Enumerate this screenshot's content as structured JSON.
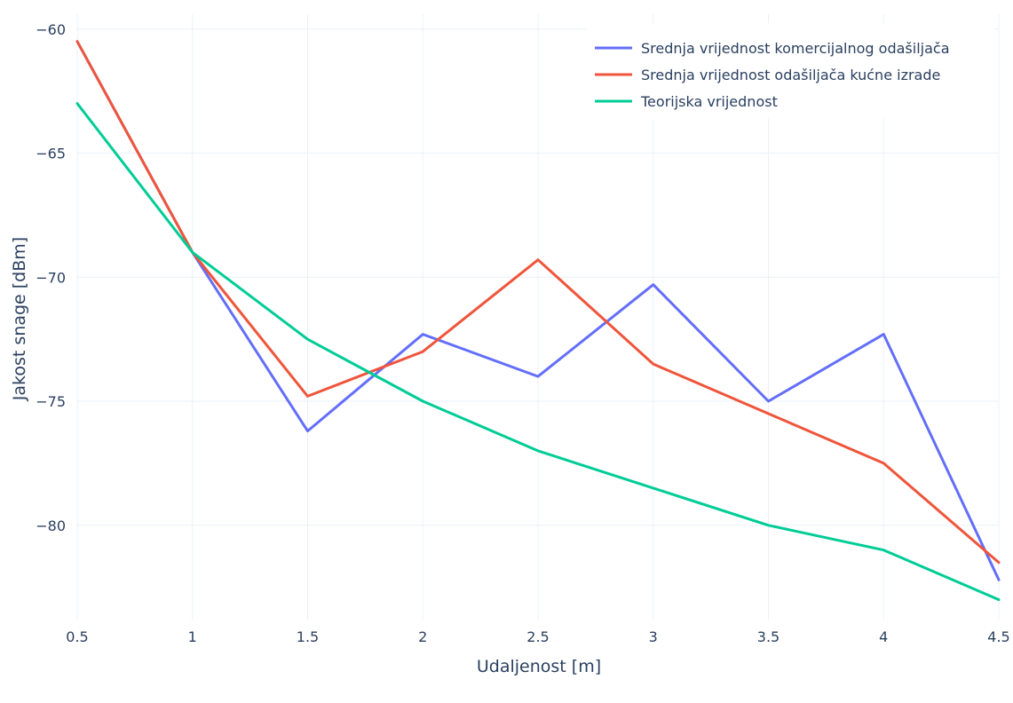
{
  "chart_data": {
    "type": "line",
    "xlabel": "Udaljenost [m]",
    "ylabel": "Jakost snage [dBm]",
    "xlim": [
      0.5,
      4.5
    ],
    "ylim": [
      -83.8,
      -59.4
    ],
    "x_ticks": [
      "0.5",
      "1",
      "1.5",
      "2",
      "2.5",
      "3",
      "3.5",
      "4",
      "4.5"
    ],
    "y_ticks": [
      "−60",
      "−65",
      "−70",
      "−75",
      "−80"
    ],
    "grid": true,
    "legend_position": "top-right",
    "x": [
      0.5,
      1,
      1.5,
      2,
      2.5,
      3,
      3.5,
      4,
      4.5
    ],
    "series": [
      {
        "name": "Srednja vrijednost komercijalnog odašiljača",
        "color": "#636efa",
        "values": [
          -60.5,
          -69.0,
          -76.2,
          -72.3,
          -74.0,
          -70.3,
          -75.0,
          -72.3,
          -82.2
        ]
      },
      {
        "name": "Srednja vrijednost odašiljača kućne izrade",
        "color": "#ef553b",
        "values": [
          -60.5,
          -69.0,
          -74.8,
          -73.0,
          -69.3,
          -73.5,
          -75.5,
          -77.5,
          -81.5
        ]
      },
      {
        "name": "Teorijska vrijednost",
        "color": "#00cc96",
        "values": [
          -63.0,
          -69.0,
          -72.5,
          -75.0,
          -77.0,
          -78.5,
          -80.0,
          -81.0,
          -83.0
        ]
      }
    ]
  }
}
